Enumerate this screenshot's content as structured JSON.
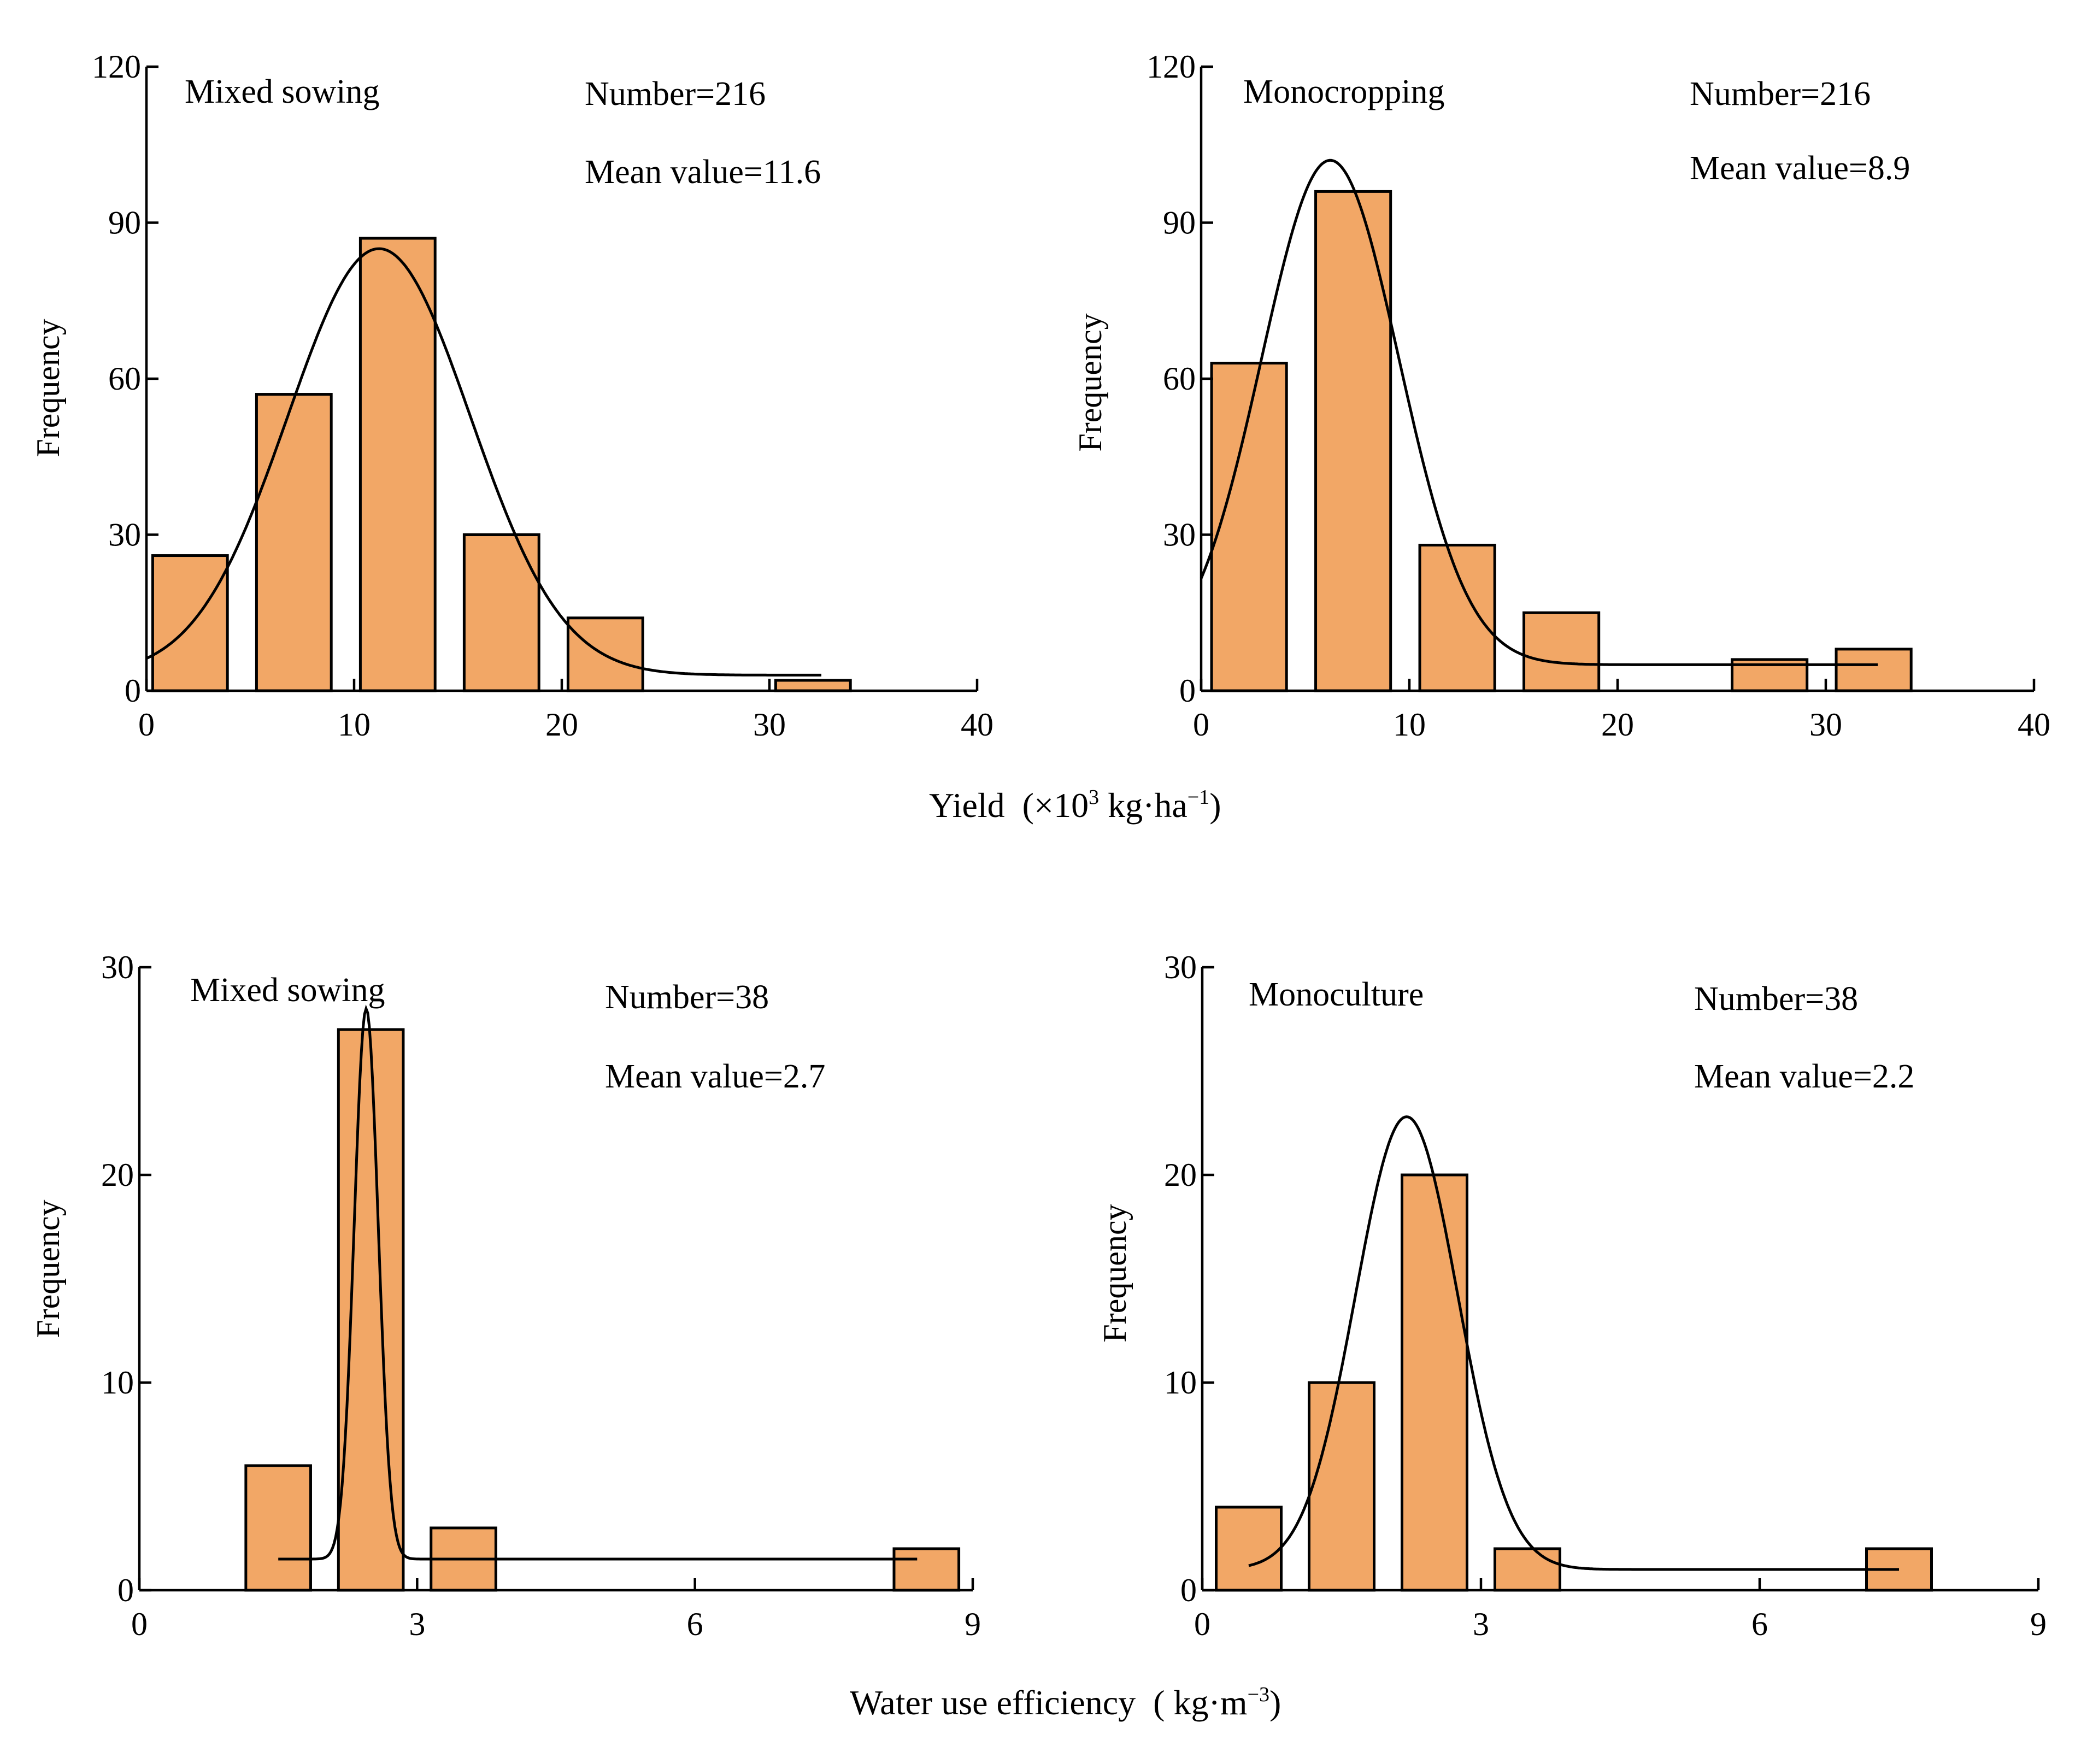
{
  "shared_labels": {
    "yield": {
      "main": "Yield  (×10",
      "sup1": "3",
      "mid": " kg·ha",
      "sup2": "−1",
      "end": ")"
    },
    "wue": {
      "main": "Water use efficiency  ( kg·m",
      "sup1": "−3",
      "end": ")"
    }
  },
  "chart_data": [
    {
      "type": "bar",
      "title": "Mixed sowing",
      "annotations": [
        "Number=216",
        "Mean value=11.6"
      ],
      "xlabel": "Yield (×10³ kg·ha⁻¹)",
      "ylabel": "Frequency",
      "xlim": [
        0,
        40
      ],
      "ylim": [
        0,
        120
      ],
      "xticks": [
        0,
        10,
        20,
        30,
        40
      ],
      "yticks": [
        0,
        30,
        60,
        90,
        120
      ],
      "bins": [
        {
          "x0": 0.3,
          "x1": 3.9,
          "value": 26
        },
        {
          "x0": 5.3,
          "x1": 8.9,
          "value": 57
        },
        {
          "x0": 10.3,
          "x1": 13.9,
          "value": 87
        },
        {
          "x0": 15.3,
          "x1": 18.9,
          "value": 30
        },
        {
          "x0": 20.3,
          "x1": 23.9,
          "value": 14
        },
        {
          "x0": 30.3,
          "x1": 33.9,
          "value": 2
        }
      ],
      "fit_curve": {
        "type": "normal",
        "mean": 11.2,
        "sd": 4.4,
        "peak": 82,
        "baseline": 3,
        "x_range": [
          0,
          32.5
        ]
      }
    },
    {
      "type": "bar",
      "title": "Monocropping",
      "annotations": [
        "Number=216",
        "Mean value=8.9"
      ],
      "xlabel": "Yield (×10³ kg·ha⁻¹)",
      "ylabel": "Frequency",
      "xlim": [
        0,
        40
      ],
      "ylim": [
        0,
        120
      ],
      "xticks": [
        0,
        10,
        20,
        30,
        40
      ],
      "yticks": [
        0,
        30,
        60,
        90,
        120
      ],
      "bins": [
        {
          "x0": 0.5,
          "x1": 4.1,
          "value": 63
        },
        {
          "x0": 5.5,
          "x1": 9.1,
          "value": 96
        },
        {
          "x0": 10.5,
          "x1": 14.1,
          "value": 28
        },
        {
          "x0": 15.5,
          "x1": 19.1,
          "value": 15
        },
        {
          "x0": 25.5,
          "x1": 29.1,
          "value": 6
        },
        {
          "x0": 30.5,
          "x1": 34.1,
          "value": 8
        }
      ],
      "fit_curve": {
        "type": "normal",
        "mean": 6.2,
        "sd": 3.3,
        "peak": 97,
        "baseline": 5,
        "x_range": [
          0,
          32.5
        ]
      }
    },
    {
      "type": "bar",
      "title": "Mixed sowing",
      "annotations": [
        "Number=38",
        "Mean value=2.7"
      ],
      "xlabel": "Water use efficiency (kg·m⁻³)",
      "ylabel": "Frequency",
      "xlim": [
        0,
        9
      ],
      "ylim": [
        0,
        30
      ],
      "xticks": [
        0,
        3,
        6,
        9
      ],
      "yticks": [
        0,
        10,
        20,
        30
      ],
      "bins": [
        {
          "x0": 1.15,
          "x1": 1.85,
          "value": 6
        },
        {
          "x0": 2.15,
          "x1": 2.85,
          "value": 27
        },
        {
          "x0": 3.15,
          "x1": 3.85,
          "value": 3
        },
        {
          "x0": 8.15,
          "x1": 8.85,
          "value": 2
        }
      ],
      "fit_curve": {
        "type": "normal",
        "mean": 2.45,
        "sd": 0.13,
        "peak": 26.5,
        "baseline": 1.5,
        "x_range": [
          1.5,
          8.4
        ]
      }
    },
    {
      "type": "bar",
      "title": "Monoculture",
      "annotations": [
        "Number=38",
        "Mean value=2.2"
      ],
      "xlabel": "Water use efficiency (kg·m⁻³)",
      "ylabel": "Frequency",
      "xlim": [
        0,
        9
      ],
      "ylim": [
        0,
        30
      ],
      "xticks": [
        0,
        3,
        6,
        9
      ],
      "yticks": [
        0,
        10,
        20,
        30
      ],
      "bins": [
        {
          "x0": 0.15,
          "x1": 0.85,
          "value": 4
        },
        {
          "x0": 1.15,
          "x1": 1.85,
          "value": 10
        },
        {
          "x0": 2.15,
          "x1": 2.85,
          "value": 20
        },
        {
          "x0": 3.15,
          "x1": 3.85,
          "value": 2
        },
        {
          "x0": 7.15,
          "x1": 7.85,
          "value": 2
        }
      ],
      "fit_curve": {
        "type": "normal",
        "mean": 2.2,
        "sd": 0.55,
        "peak": 21.8,
        "baseline": 1,
        "x_range": [
          0.5,
          7.5
        ]
      }
    }
  ]
}
